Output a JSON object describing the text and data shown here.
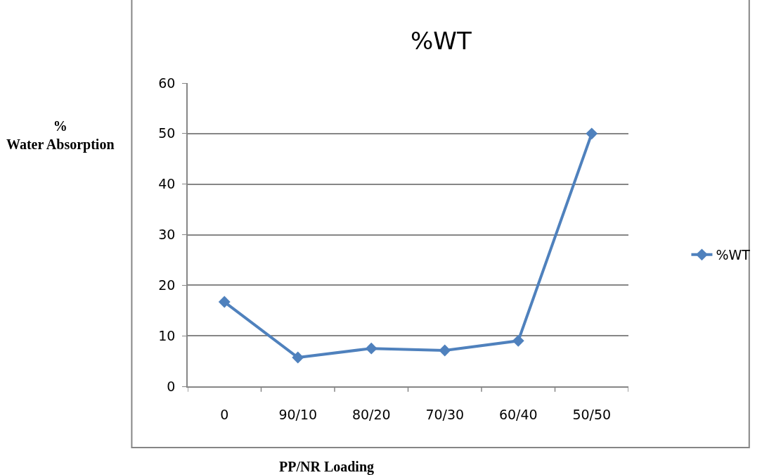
{
  "chart_data": {
    "type": "line",
    "title": "%WT",
    "xlabel": "PP/NR Loading",
    "ylabel": "% Water Absorption",
    "categories": [
      "0",
      "90/10",
      "80/20",
      "70/30",
      "60/40",
      "50/50"
    ],
    "series": [
      {
        "name": "%WT",
        "color": "#4f81bd",
        "values": [
          16.7,
          5.7,
          7.5,
          7.1,
          9.0,
          50
        ]
      }
    ],
    "ylim": [
      0,
      60
    ],
    "yticks": [
      0,
      10,
      20,
      30,
      40,
      50,
      60
    ],
    "grid": "y",
    "legend": "right",
    "marker": "diamond",
    "line_style": "solid"
  }
}
